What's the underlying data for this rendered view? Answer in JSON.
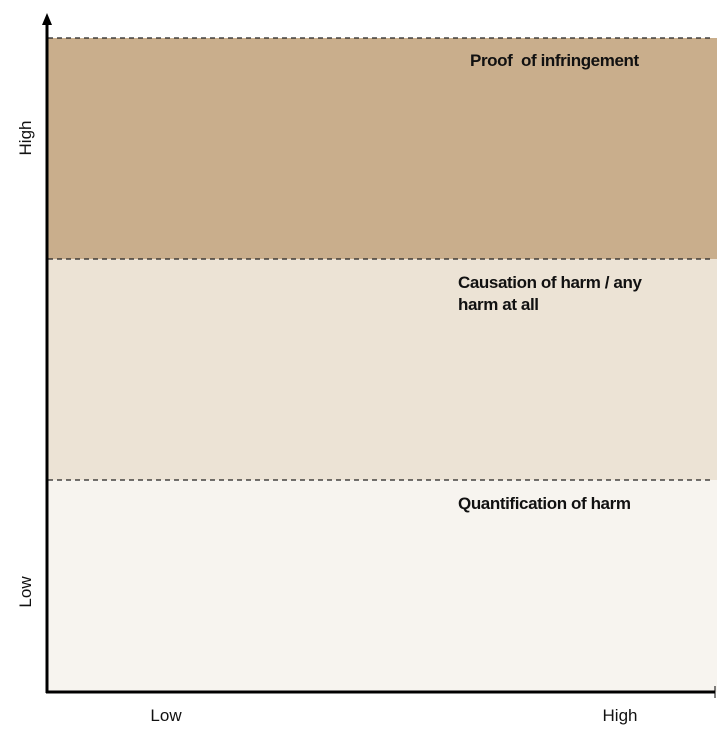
{
  "y_axis": {
    "high": "High",
    "low": "Low"
  },
  "x_axis": {
    "low": "Low",
    "high": "High"
  },
  "bands": [
    {
      "lines": [
        "Proof  of infringement"
      ]
    },
    {
      "lines": [
        "Causation of harm / any",
        "harm at all"
      ]
    },
    {
      "lines": [
        "Quantification of harm"
      ]
    }
  ]
}
